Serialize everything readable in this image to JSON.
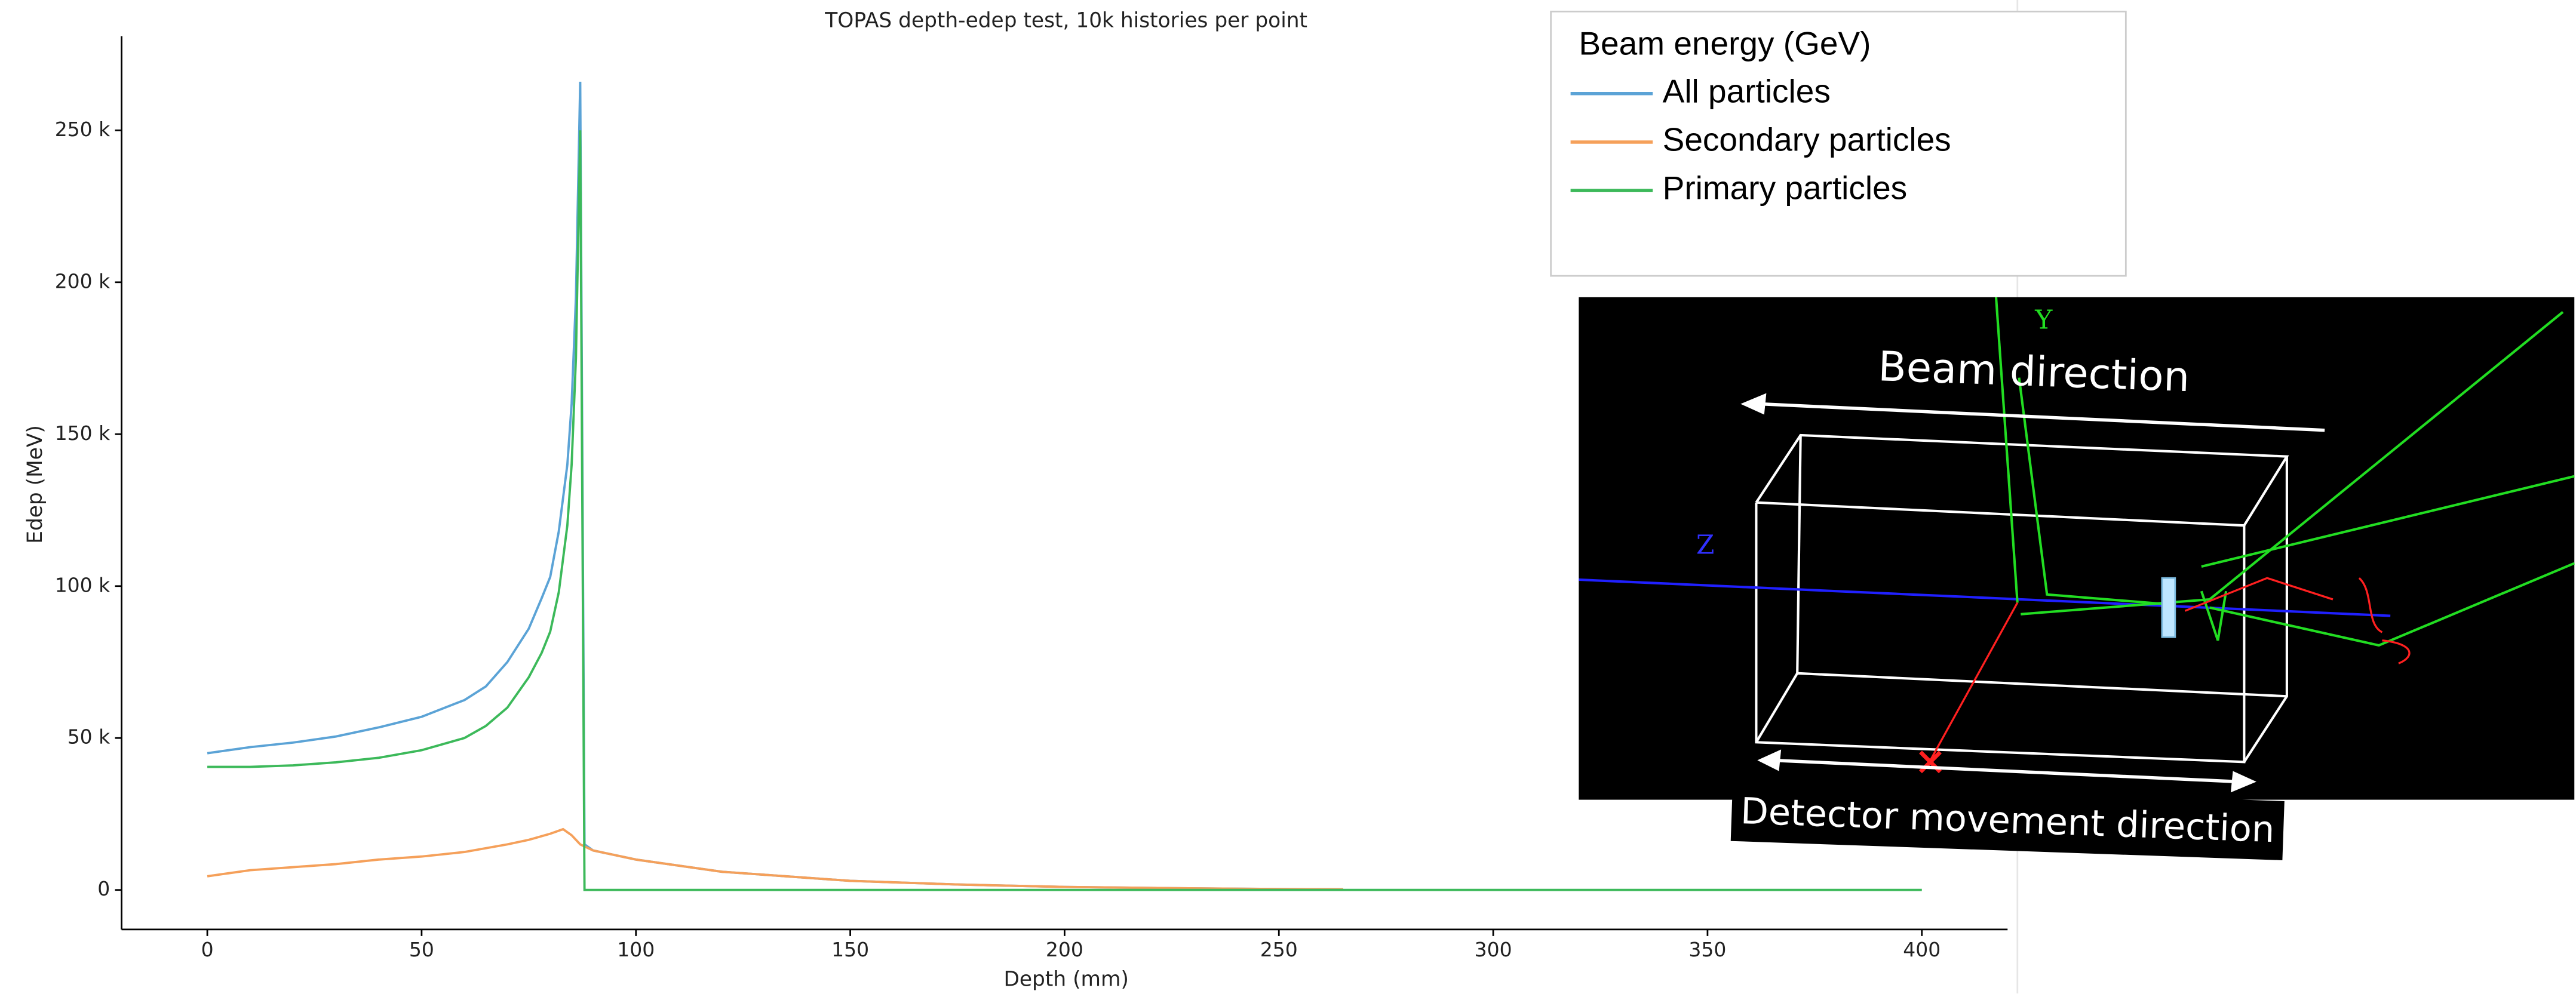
{
  "chart_data": {
    "type": "line",
    "title": "TOPAS depth-edep test, 10k histories per point",
    "x_label": "Depth (mm)",
    "y_label": "Edep (MeV)",
    "xlim": [
      -20,
      420
    ],
    "ylim": [
      -13000,
      281000
    ],
    "xticks": [
      0,
      50,
      100,
      150,
      200,
      250,
      300,
      350,
      400
    ],
    "yticks": [
      0,
      {
        "value": 50000,
        "label": "50 k"
      },
      {
        "value": 100000,
        "label": "100 k"
      },
      {
        "value": 150000,
        "label": "150 k"
      },
      {
        "value": 200000,
        "label": "200 k"
      },
      {
        "value": 250000,
        "label": "250 k"
      }
    ],
    "legend_title": "Beam energy (GeV)",
    "legend_position": "upper right",
    "series": [
      {
        "name": "All particles",
        "color": "#5ba3d6",
        "x": [
          0,
          10,
          20,
          30,
          40,
          50,
          60,
          65,
          70,
          75,
          78,
          80,
          82,
          84,
          85,
          86,
          87,
          88,
          90,
          100,
          120,
          150,
          175,
          200,
          225,
          250,
          265
        ],
        "values": [
          45000,
          47000,
          48500,
          50500,
          53500,
          57000,
          62500,
          67000,
          75000,
          86000,
          96000,
          103000,
          118000,
          140000,
          160000,
          195000,
          266000,
          15000,
          13000,
          10000,
          6000,
          3000,
          1800,
          1000,
          600,
          300,
          200
        ]
      },
      {
        "name": "Secondary particles",
        "color": "#f5a05a",
        "x": [
          0,
          10,
          20,
          30,
          40,
          50,
          60,
          70,
          75,
          80,
          83,
          85,
          87,
          90,
          100,
          120,
          150,
          175,
          200,
          225,
          250,
          265
        ],
        "values": [
          4500,
          6500,
          7500,
          8500,
          10000,
          11000,
          12500,
          15000,
          16500,
          18500,
          20000,
          18000,
          15000,
          13000,
          10000,
          6000,
          3000,
          1800,
          1000,
          600,
          300,
          200
        ]
      },
      {
        "name": "Primary particles",
        "color": "#3cb95a",
        "x": [
          0,
          10,
          20,
          30,
          40,
          50,
          60,
          65,
          70,
          75,
          78,
          80,
          82,
          84,
          85,
          86,
          87,
          88,
          90,
          100,
          200,
          300,
          400
        ],
        "values": [
          40500,
          40500,
          41000,
          42000,
          43500,
          46000,
          50000,
          54000,
          60000,
          70000,
          78000,
          85000,
          98000,
          120000,
          140000,
          175000,
          250000,
          0,
          0,
          0,
          0,
          0,
          0
        ]
      }
    ],
    "annotations": {
      "beam": "Beam direction",
      "detector": "Detector movement direction",
      "y_axis": "Y",
      "z_axis": "Z"
    }
  }
}
